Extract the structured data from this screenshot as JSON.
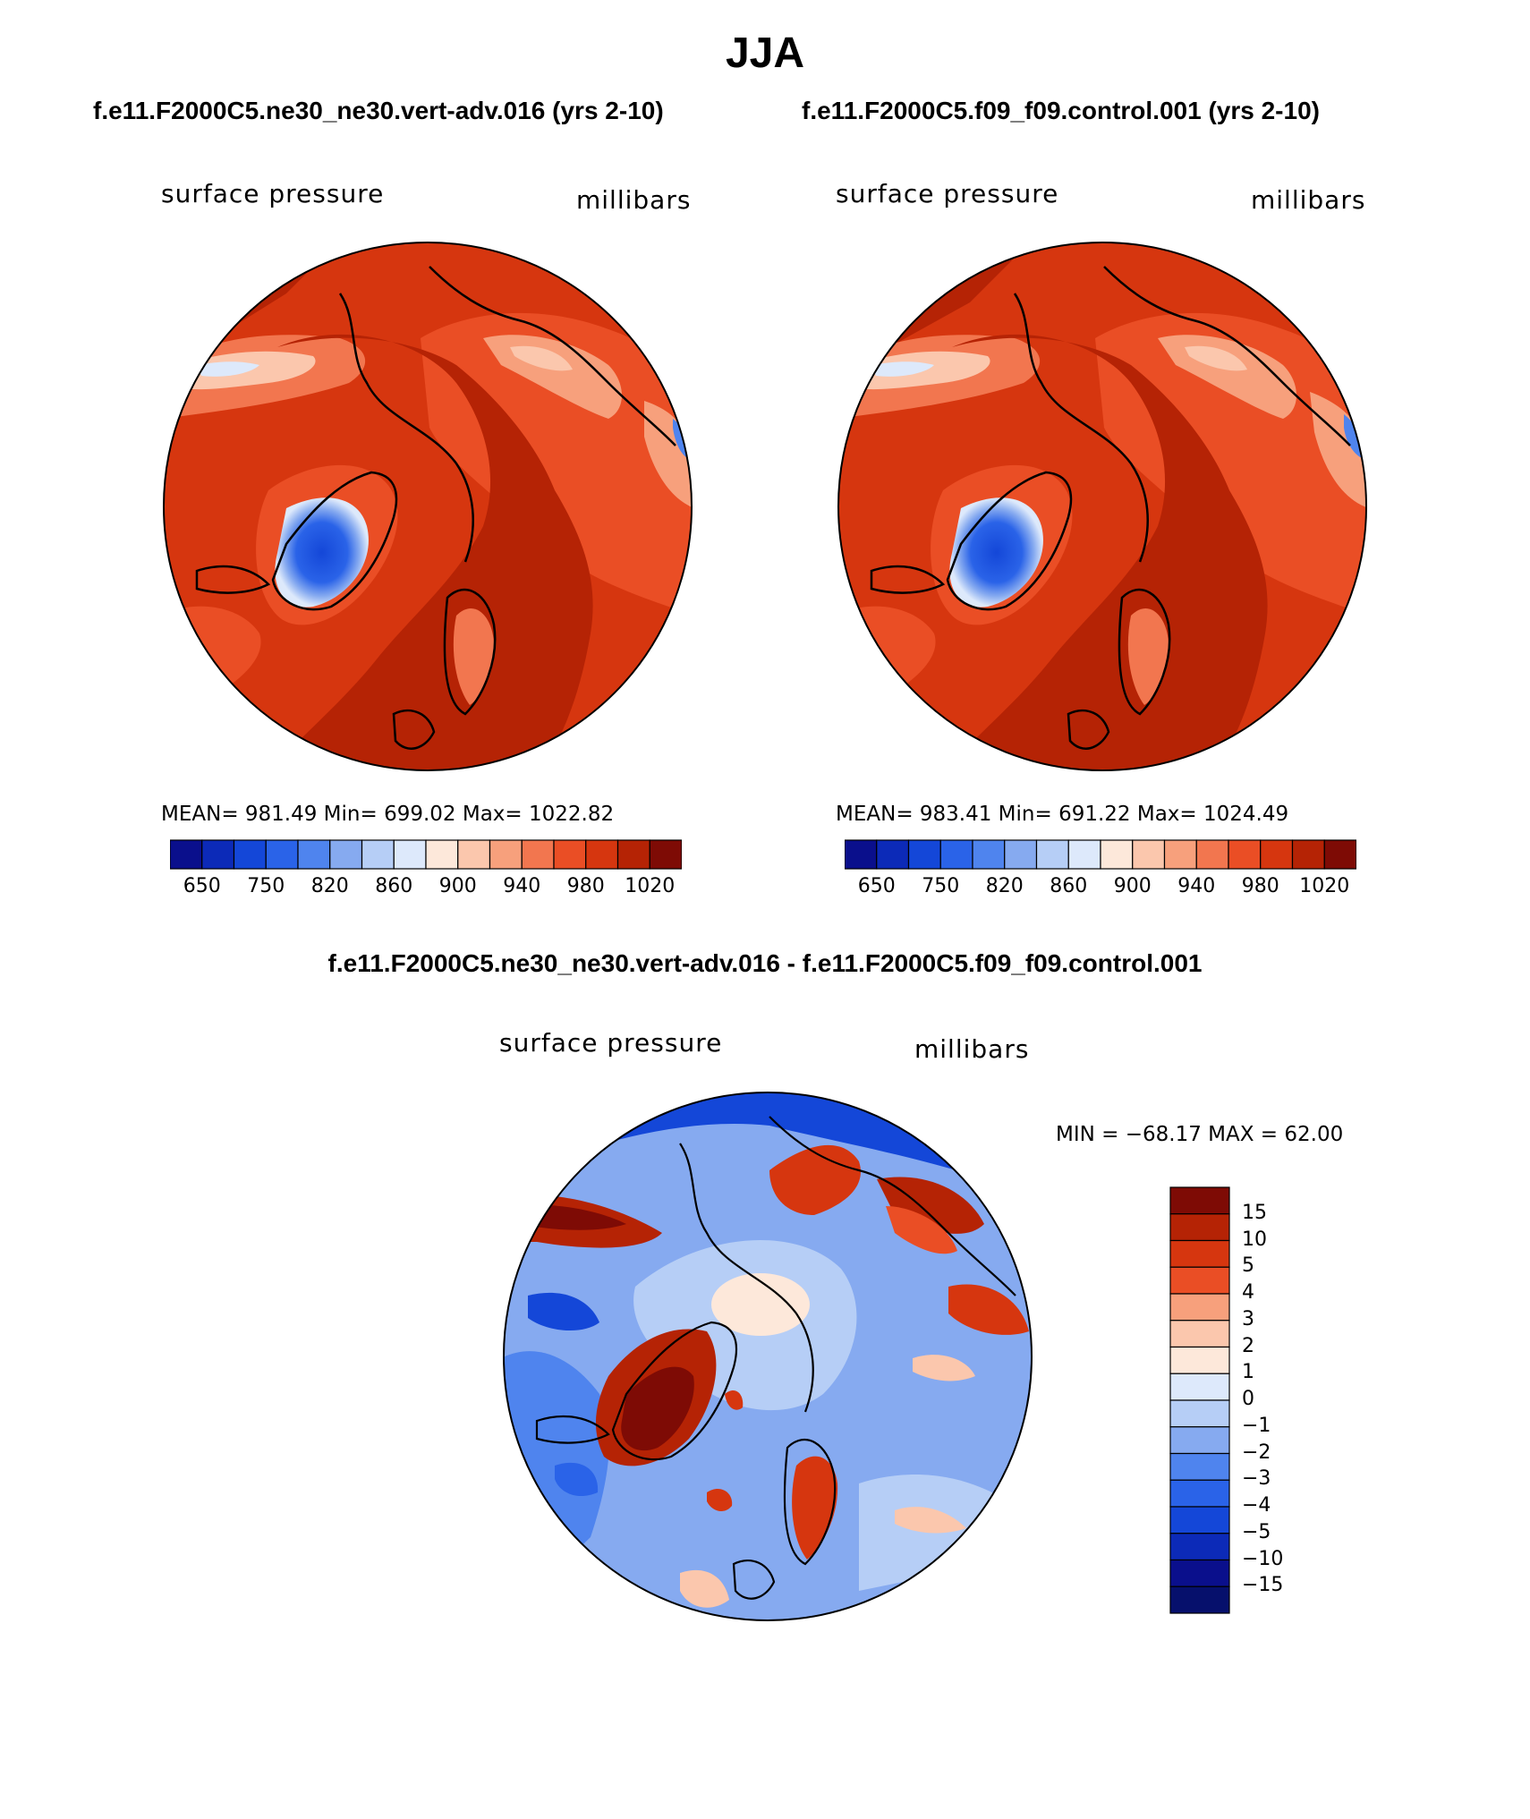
{
  "figure": {
    "title": "JJA",
    "diff_title": "f.e11.F2000C5.ne30_ne30.vert-adv.016 - f.e11.F2000C5.f09_f09.control.001"
  },
  "panels": [
    {
      "case": "f.e11.F2000C5.ne30_ne30.vert-adv.016 (yrs 2-10)",
      "variable": "surface pressure",
      "units": "millibars",
      "stats": "MEAN=  981.49    Min=  699.02    Max=  1022.82"
    },
    {
      "case": "f.e11.F2000C5.f09_f09.control.001 (yrs 2-10)",
      "variable": "surface pressure",
      "units": "millibars",
      "stats": "MEAN=  983.41    Min=  691.22    Max=  1024.49"
    },
    {
      "variable": "surface pressure",
      "units": "millibars",
      "stats": "MIN  =  −68.17  MAX  =    62.00"
    }
  ],
  "chart_data": [
    {
      "type": "heatmap",
      "projection": "north polar stereographic",
      "title": "f.e11.F2000C5.ne30_ne30.vert-adv.016 (yrs 2-10)",
      "label": "surface pressure",
      "units": "millibars",
      "mean": 981.49,
      "min": 699.02,
      "max": 1022.82,
      "colorbar": {
        "ticks": [
          "650",
          "750",
          "820",
          "860",
          "900",
          "940",
          "980",
          "1020"
        ],
        "colors": [
          "#0a0f8c",
          "#0c2ab8",
          "#1447d8",
          "#2a63e8",
          "#4f84ee",
          "#86aaf0",
          "#b6cef6",
          "#dde9fb",
          "#fde8da",
          "#fbc7ad",
          "#f7a07c",
          "#f2764f",
          "#ea4e25",
          "#d6360f",
          "#b52305",
          "#7e0b05"
        ]
      }
    },
    {
      "type": "heatmap",
      "projection": "north polar stereographic",
      "title": "f.e11.F2000C5.f09_f09.control.001 (yrs 2-10)",
      "label": "surface pressure",
      "units": "millibars",
      "mean": 983.41,
      "min": 691.22,
      "max": 1024.49,
      "colorbar": {
        "ticks": [
          "650",
          "750",
          "820",
          "860",
          "900",
          "940",
          "980",
          "1020"
        ],
        "colors": [
          "#0a0f8c",
          "#0c2ab8",
          "#1447d8",
          "#2a63e8",
          "#4f84ee",
          "#86aaf0",
          "#b6cef6",
          "#dde9fb",
          "#fde8da",
          "#fbc7ad",
          "#f7a07c",
          "#f2764f",
          "#ea4e25",
          "#d6360f",
          "#b52305",
          "#7e0b05"
        ]
      }
    },
    {
      "type": "heatmap",
      "projection": "north polar stereographic",
      "title": "f.e11.F2000C5.ne30_ne30.vert-adv.016 - f.e11.F2000C5.f09_f09.control.001",
      "label": "surface pressure",
      "units": "millibars",
      "min": -68.17,
      "max": 62.0,
      "colorbar": {
        "ticks": [
          "15",
          "10",
          "5",
          "4",
          "3",
          "2",
          "1",
          "0",
          "−1",
          "−2",
          "−3",
          "−4",
          "−5",
          "−10",
          "−15"
        ],
        "colors": [
          "#7e0b05",
          "#b52305",
          "#d6360f",
          "#ea4e25",
          "#f7a07c",
          "#fbc7ad",
          "#fde8da",
          "#dde9fb",
          "#b6cef6",
          "#86aaf0",
          "#4f84ee",
          "#2a63e8",
          "#1447d8",
          "#0c2ab8",
          "#0a0f8c",
          "#06106c"
        ]
      }
    }
  ]
}
